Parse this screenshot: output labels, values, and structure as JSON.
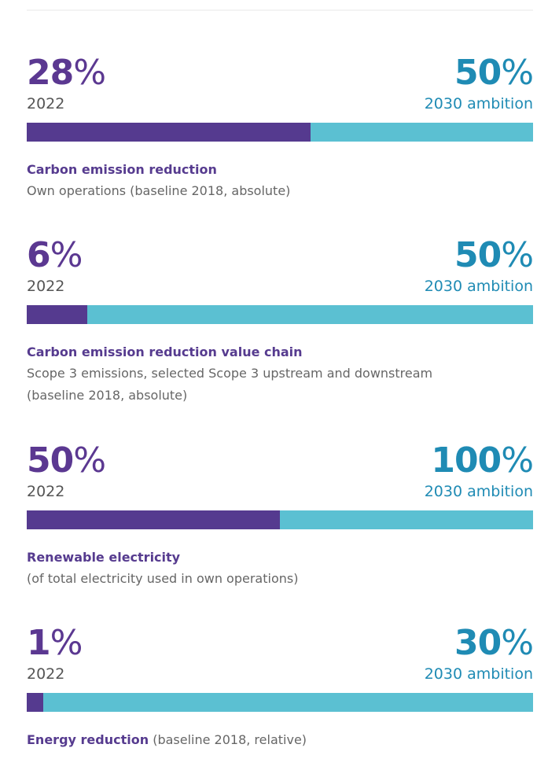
{
  "chart_data": {
    "type": "table",
    "title": "",
    "metrics": [
      {
        "current_value": "28",
        "current_unit": "%",
        "current_label": "2022",
        "target_value": "50",
        "target_unit": "%",
        "target_label": "2030 ambition",
        "progress_percent_of_bar": 56,
        "title": "Carbon emission reduction",
        "description": "Own operations (baseline 2018, absolute)"
      },
      {
        "current_value": "6",
        "current_unit": "%",
        "current_label": "2022",
        "target_value": "50",
        "target_unit": "%",
        "target_label": "2030 ambition",
        "progress_percent_of_bar": 12,
        "title": "Carbon emission reduction value chain",
        "description_lines": [
          "Scope 3 emissions, selected Scope 3 upstream and downstream",
          "(baseline 2018, absolute)"
        ]
      },
      {
        "current_value": "50",
        "current_unit": "%",
        "current_label": "2022",
        "target_value": "100",
        "target_unit": "%",
        "target_label": "2030 ambition",
        "progress_percent_of_bar": 50,
        "title": "Renewable electricity",
        "description": "(of total electricity used in own operations)"
      },
      {
        "current_value": "1",
        "current_unit": "%",
        "current_label": "2022",
        "target_value": "30",
        "target_unit": "%",
        "target_label": "2030 ambition",
        "progress_percent_of_bar": 3.3,
        "title": "Energy reduction",
        "title_note": " (baseline 2018, relative)"
      }
    ]
  },
  "colors": {
    "progress": "#553a8f",
    "remaining": "#5bc0d2",
    "current_text": "#5b3891",
    "target_text": "#1f8bb4",
    "body_text": "#666666"
  }
}
